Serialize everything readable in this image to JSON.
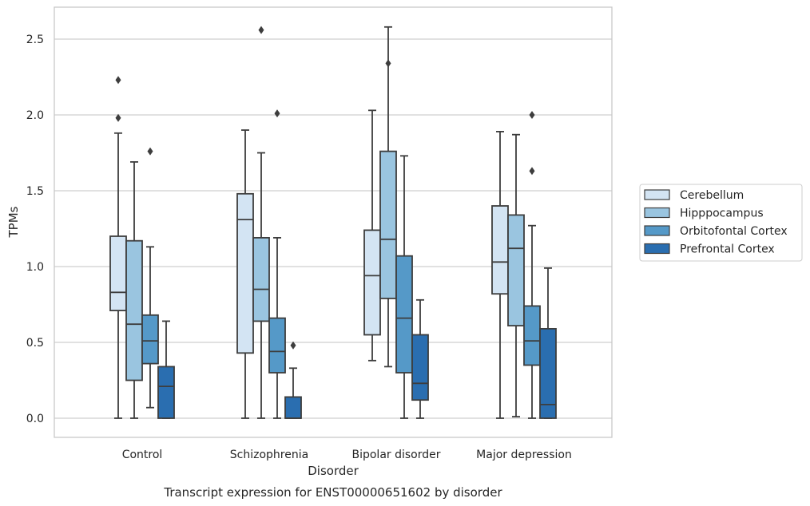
{
  "chart_data": {
    "type": "box",
    "title": "",
    "caption": "Transcript expression for ENST00000651602 by disorder",
    "xlabel": "Disorder",
    "ylabel": "TPMs",
    "ylim": [
      -0.12,
      2.7
    ],
    "yticks": [
      "0.0",
      "0.5",
      "1.0",
      "1.5",
      "2.0",
      "2.5"
    ],
    "ytick_values": [
      0,
      0.5,
      1.0,
      1.5,
      2.0,
      2.5
    ],
    "grid": true,
    "legend_position": "right",
    "categories": [
      "Control",
      "Schizophrenia",
      "Bipolar disorder",
      "Major depression"
    ],
    "series": [
      {
        "name": "Cerebellum",
        "color": "#d3e4f3",
        "boxes": [
          {
            "whisker_low": 0.0,
            "q1": 0.71,
            "median": 0.83,
            "q3": 1.2,
            "whisker_high": 1.88,
            "outliers": [
              1.98,
              2.23
            ]
          },
          {
            "whisker_low": 0.0,
            "q1": 0.43,
            "median": 1.31,
            "q3": 1.48,
            "whisker_high": 1.9,
            "outliers": []
          },
          {
            "whisker_low": 0.38,
            "q1": 0.55,
            "median": 0.94,
            "q3": 1.24,
            "whisker_high": 2.03,
            "outliers": []
          },
          {
            "whisker_low": 0.0,
            "q1": 0.82,
            "median": 1.03,
            "q3": 1.4,
            "whisker_high": 1.89,
            "outliers": []
          }
        ]
      },
      {
        "name": "Hipppocampus",
        "color": "#9ac5e0",
        "boxes": [
          {
            "whisker_low": 0.0,
            "q1": 0.25,
            "median": 0.62,
            "q3": 1.17,
            "whisker_high": 1.69,
            "outliers": []
          },
          {
            "whisker_low": 0.0,
            "q1": 0.64,
            "median": 0.85,
            "q3": 1.19,
            "whisker_high": 1.75,
            "outliers": [
              2.56
            ]
          },
          {
            "whisker_low": 0.34,
            "q1": 0.79,
            "median": 1.18,
            "q3": 1.76,
            "whisker_high": 2.58,
            "outliers": [
              2.34
            ]
          },
          {
            "whisker_low": 0.01,
            "q1": 0.61,
            "median": 1.12,
            "q3": 1.34,
            "whisker_high": 1.87,
            "outliers": []
          }
        ]
      },
      {
        "name": "Orbitofontal Cortex",
        "color": "#5599c8",
        "boxes": [
          {
            "whisker_low": 0.07,
            "q1": 0.36,
            "median": 0.51,
            "q3": 0.68,
            "whisker_high": 1.13,
            "outliers": [
              1.76
            ]
          },
          {
            "whisker_low": 0.0,
            "q1": 0.3,
            "median": 0.44,
            "q3": 0.66,
            "whisker_high": 1.19,
            "outliers": [
              2.01
            ]
          },
          {
            "whisker_low": 0.0,
            "q1": 0.3,
            "median": 0.66,
            "q3": 1.07,
            "whisker_high": 1.73,
            "outliers": []
          },
          {
            "whisker_low": 0.0,
            "q1": 0.35,
            "median": 0.51,
            "q3": 0.74,
            "whisker_high": 1.27,
            "outliers": [
              1.63,
              2.0
            ]
          }
        ]
      },
      {
        "name": "Prefrontal Cortex",
        "color": "#2a6eb0",
        "boxes": [
          {
            "whisker_low": 0.0,
            "q1": 0.0,
            "median": 0.21,
            "q3": 0.34,
            "whisker_high": 0.64,
            "outliers": []
          },
          {
            "whisker_low": 0.0,
            "q1": 0.0,
            "median": 0.0,
            "q3": 0.14,
            "whisker_high": 0.33,
            "outliers": [
              0.48
            ]
          },
          {
            "whisker_low": 0.0,
            "q1": 0.12,
            "median": 0.23,
            "q3": 0.55,
            "whisker_high": 0.78,
            "outliers": []
          },
          {
            "whisker_low": 0.0,
            "q1": 0.0,
            "median": 0.09,
            "q3": 0.59,
            "whisker_high": 0.99,
            "outliers": []
          }
        ]
      }
    ]
  },
  "colors": {
    "edge": "#3d3d3d",
    "grid": "#cfcfcf",
    "frame": "#c8c8c8"
  }
}
